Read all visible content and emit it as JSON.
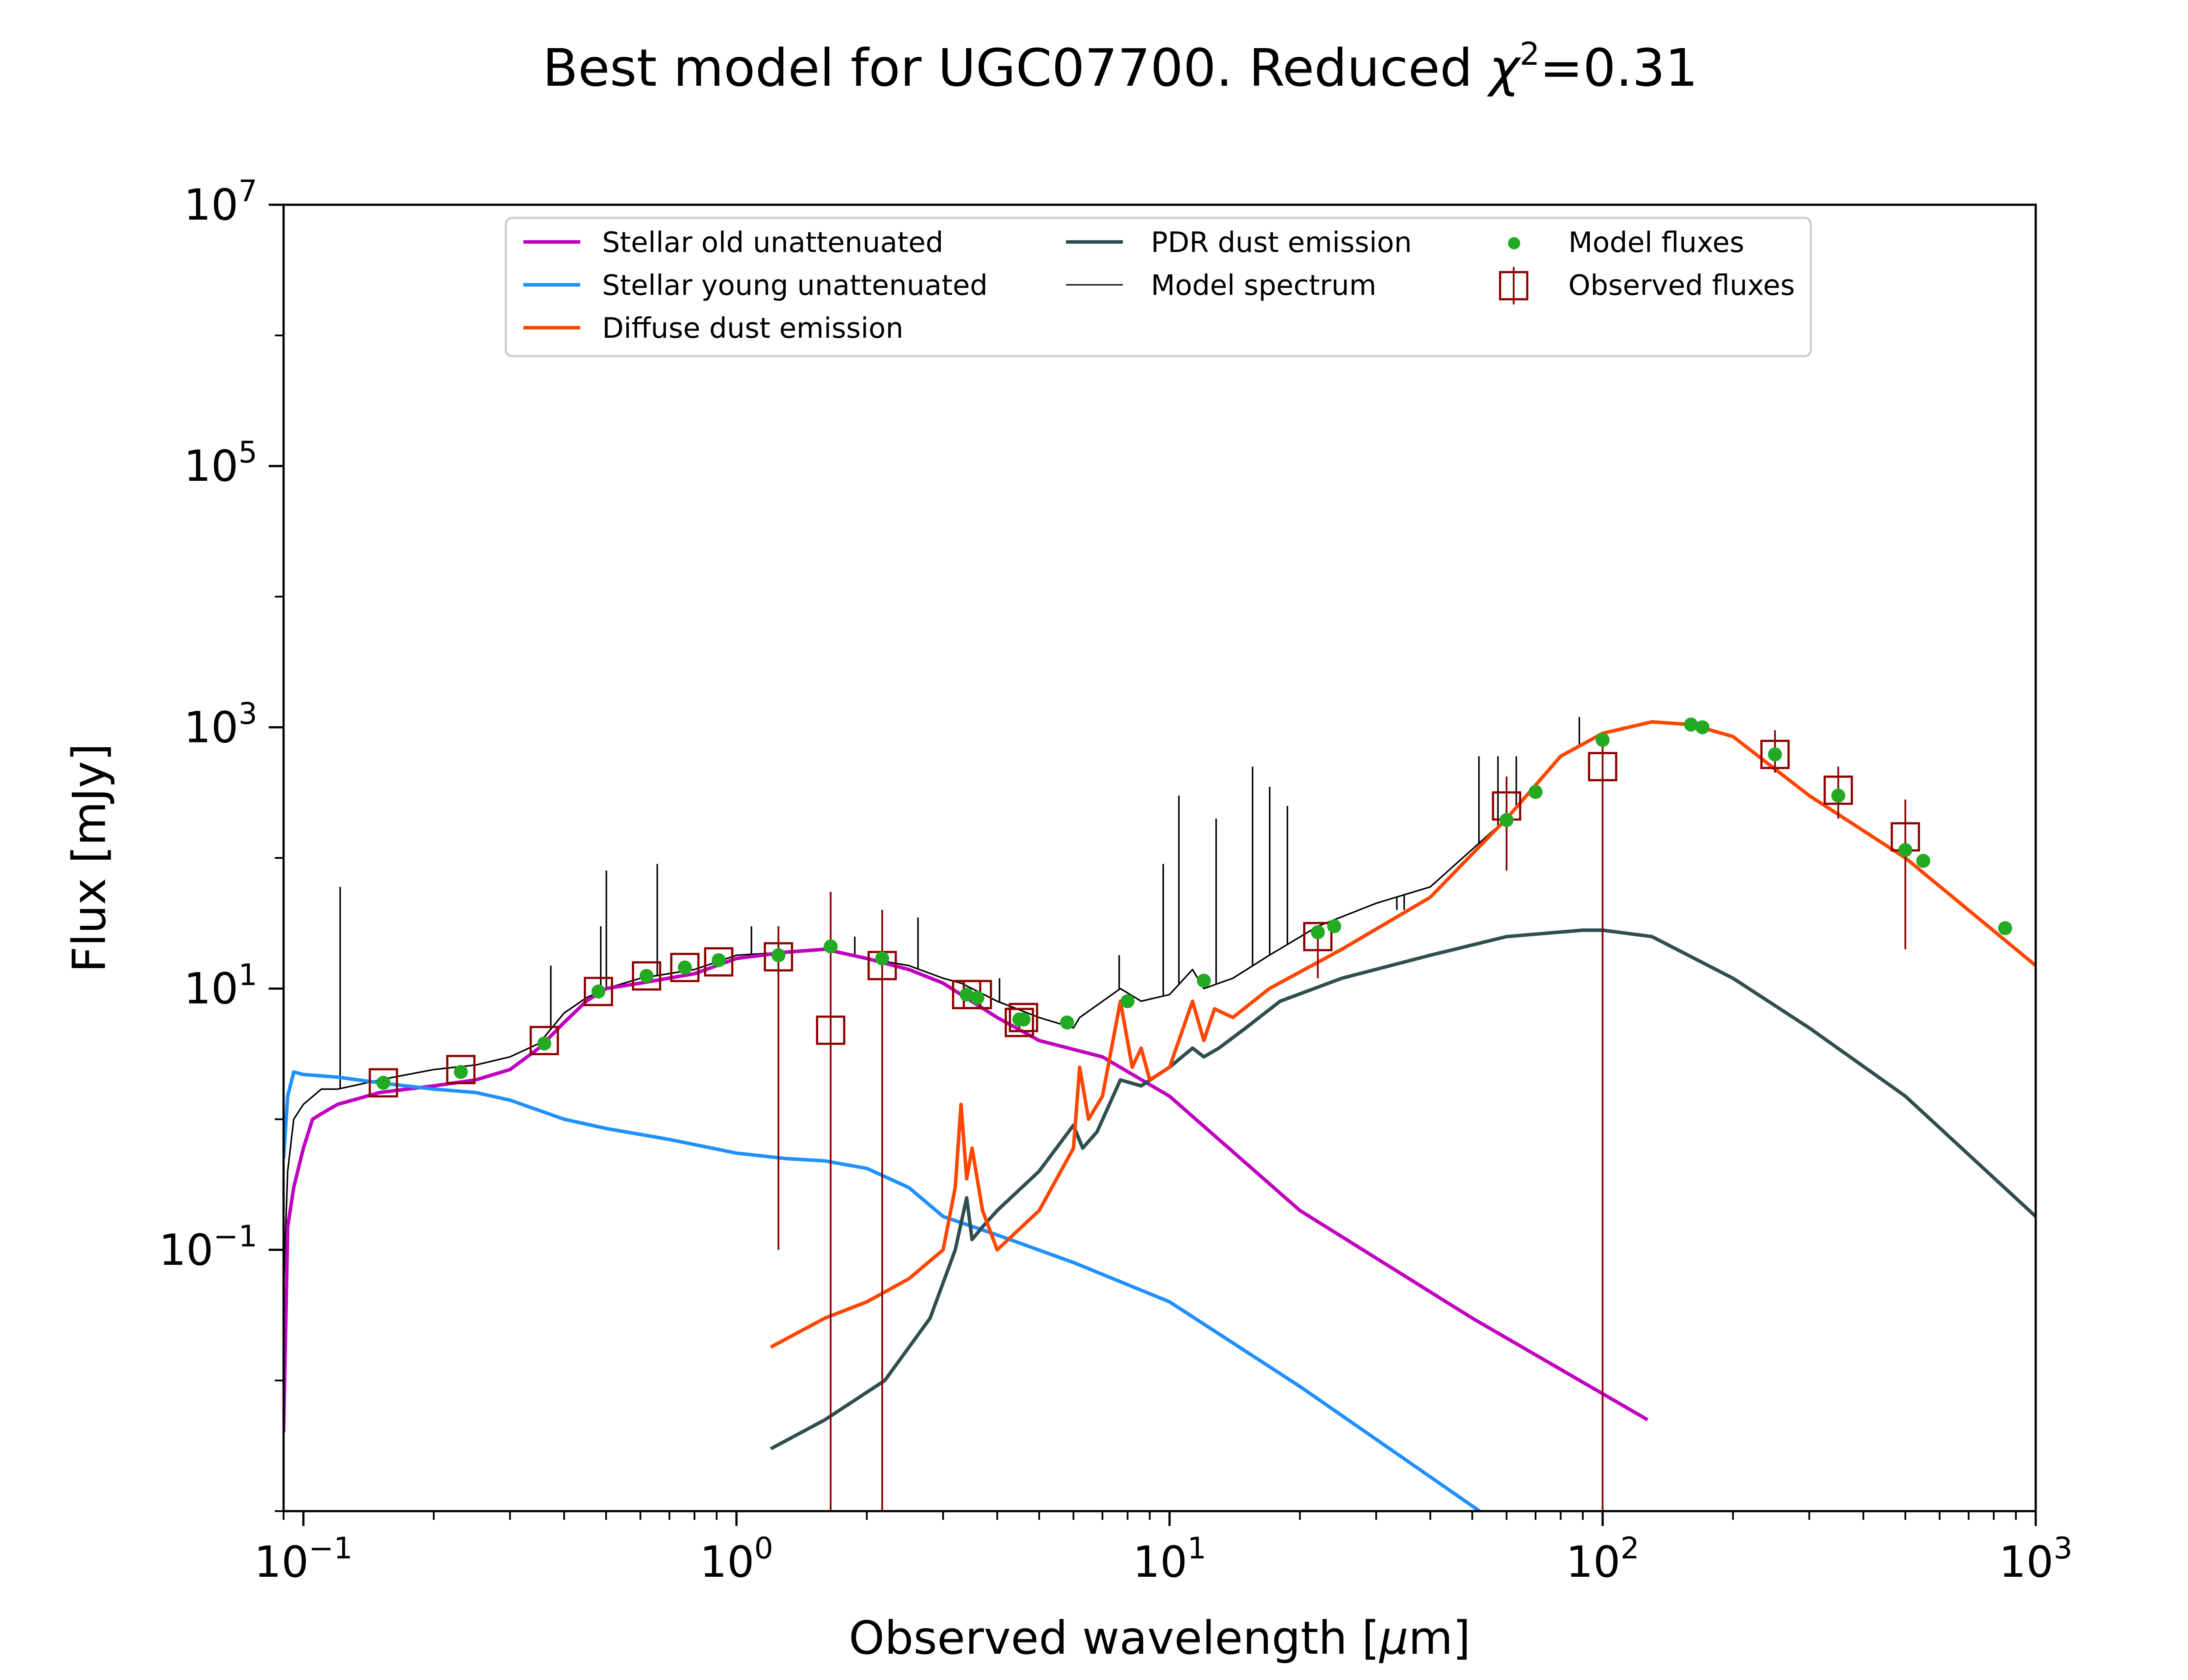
{
  "chart_data": {
    "type": "line",
    "title": "Best model for UGC07700. Reduced χ²=0.31",
    "title_parts": {
      "prefix": "Best model for UGC07700. Reduced ",
      "chi": "χ",
      "sup": "2",
      "suffix": "=0.31"
    },
    "xlabel": "Observed wavelength [μm]",
    "xlabel_parts": {
      "prefix": "Observed wavelength [",
      "mu": "μ",
      "suffix": "m]"
    },
    "ylabel": "Flux [mJy]",
    "x_scale": "log",
    "y_scale": "log",
    "xlim": [
      0.09,
      1000
    ],
    "ylim": [
      0.001,
      10000000
    ],
    "xticks": [
      {
        "value": 0.1,
        "base": "10",
        "exp": "−1"
      },
      {
        "value": 1,
        "base": "10",
        "exp": "0"
      },
      {
        "value": 10,
        "base": "10",
        "exp": "1"
      },
      {
        "value": 100,
        "base": "10",
        "exp": "2"
      },
      {
        "value": 1000,
        "base": "10",
        "exp": "3"
      }
    ],
    "yticks": [
      {
        "value": 0.1,
        "base": "10",
        "exp": "−1"
      },
      {
        "value": 10,
        "base": "10",
        "exp": "1"
      },
      {
        "value": 1000,
        "base": "10",
        "exp": "3"
      },
      {
        "value": 100000,
        "base": "10",
        "exp": "5"
      },
      {
        "value": 10000000,
        "base": "10",
        "exp": "7"
      }
    ],
    "grid": false,
    "legend_position": "top-center",
    "series": [
      {
        "name": "Stellar old unattenuated",
        "kind": "line",
        "color": "#bf00bf",
        "x": [
          0.09,
          0.092,
          0.095,
          0.1,
          0.105,
          0.11,
          0.12,
          0.13,
          0.15,
          0.2,
          0.25,
          0.3,
          0.35,
          0.4,
          0.45,
          0.5,
          0.6,
          0.8,
          1.0,
          1.3,
          1.6,
          2.0,
          2.5,
          3.0,
          4.0,
          5.0,
          7.0,
          10,
          20,
          50,
          127
        ],
        "y": [
          0.004,
          0.15,
          0.3,
          0.6,
          1.0,
          1.1,
          1.3,
          1.4,
          1.6,
          1.8,
          2.0,
          2.4,
          3.5,
          5.5,
          8.0,
          10,
          11,
          13,
          17,
          19,
          20,
          17,
          14,
          11,
          6,
          4,
          3,
          1.5,
          0.2,
          0.03,
          0.005
        ]
      },
      {
        "name": "Stellar young unattenuated",
        "kind": "line",
        "color": "#1e90ff",
        "x": [
          0.09,
          0.092,
          0.095,
          0.1,
          0.12,
          0.15,
          0.2,
          0.25,
          0.3,
          0.4,
          0.5,
          0.7,
          1.0,
          1.3,
          1.6,
          2.0,
          2.5,
          3.0,
          4.0,
          6.0,
          10,
          20,
          52
        ],
        "y": [
          0.5,
          1.5,
          2.3,
          2.2,
          2.1,
          1.9,
          1.7,
          1.6,
          1.4,
          1.0,
          0.85,
          0.7,
          0.55,
          0.5,
          0.48,
          0.42,
          0.3,
          0.18,
          0.13,
          0.08,
          0.04,
          0.009,
          0.001
        ]
      },
      {
        "name": "Diffuse dust emission",
        "kind": "line",
        "color": "#ff4500",
        "x": [
          1.2,
          1.6,
          2.0,
          2.5,
          3.0,
          3.2,
          3.3,
          3.4,
          3.5,
          3.7,
          4.0,
          5.0,
          6.0,
          6.2,
          6.5,
          7.0,
          7.7,
          8.2,
          8.6,
          9.0,
          10,
          11.3,
          12,
          12.7,
          14,
          17,
          25,
          40,
          60,
          80,
          100,
          130,
          160,
          200,
          300,
          500,
          1000
        ],
        "y": [
          0.018,
          0.03,
          0.04,
          0.06,
          0.1,
          0.3,
          1.3,
          0.35,
          0.6,
          0.2,
          0.1,
          0.2,
          0.6,
          2.5,
          1.0,
          1.5,
          8.0,
          2.5,
          3.5,
          2.0,
          2.5,
          8.0,
          4.0,
          7.0,
          6.0,
          10,
          20,
          50,
          200,
          600,
          900,
          1100,
          1050,
          850,
          300,
          100,
          15
        ]
      },
      {
        "name": "PDR dust emission",
        "kind": "line",
        "color": "#2f4f4f",
        "x": [
          1.2,
          1.6,
          2.2,
          2.8,
          3.2,
          3.4,
          3.5,
          3.7,
          4.0,
          5.0,
          6.0,
          6.3,
          6.8,
          7.7,
          8.6,
          10,
          11.3,
          12,
          13,
          15,
          18,
          25,
          40,
          60,
          90,
          100,
          130,
          200,
          300,
          500,
          1000
        ],
        "y": [
          0.003,
          0.005,
          0.01,
          0.03,
          0.1,
          0.25,
          0.12,
          0.15,
          0.2,
          0.4,
          0.9,
          0.6,
          0.8,
          2.0,
          1.8,
          2.5,
          3.5,
          3.0,
          3.5,
          5.0,
          8.0,
          12,
          18,
          25,
          28,
          28,
          25,
          12,
          5,
          1.5,
          0.18
        ]
      },
      {
        "name": "Model spectrum",
        "kind": "line",
        "color": "#000000",
        "x": [
          0.09,
          0.092,
          0.095,
          0.1,
          0.11,
          0.12,
          0.13,
          0.15,
          0.2,
          0.25,
          0.3,
          0.35,
          0.4,
          0.45,
          0.5,
          0.6,
          0.8,
          1.0,
          1.3,
          1.6,
          2.0,
          2.5,
          3.0,
          3.3,
          3.5,
          4.0,
          5.0,
          6.0,
          6.2,
          7.7,
          8.6,
          10,
          11.3,
          12,
          14,
          17,
          22,
          30,
          40,
          60,
          80,
          100,
          130,
          160,
          200,
          300,
          500,
          1000
        ],
        "y": [
          0.05,
          0.4,
          1.0,
          1.3,
          1.7,
          1.7,
          1.8,
          2.0,
          2.4,
          2.6,
          3.0,
          3.8,
          6.5,
          8.5,
          10,
          12,
          14,
          18,
          19,
          20,
          17,
          15,
          12,
          11,
          10,
          8,
          6,
          5,
          6,
          10,
          8,
          9,
          14,
          10,
          12,
          18,
          30,
          45,
          60,
          200,
          600,
          900,
          1100,
          1050,
          850,
          300,
          100,
          15
        ]
      },
      {
        "name": "Model fluxes",
        "kind": "scatter",
        "color": "#22aa22",
        "x": [
          0.153,
          0.231,
          0.36,
          0.48,
          0.62,
          0.76,
          0.91,
          1.25,
          1.65,
          2.17,
          3.4,
          3.6,
          4.5,
          4.6,
          5.8,
          8.0,
          12,
          22,
          24,
          60,
          70,
          100,
          160,
          170,
          250,
          350,
          500,
          550,
          850
        ],
        "y": [
          1.9,
          2.3,
          3.8,
          9.5,
          12.5,
          14.5,
          16.5,
          18,
          21,
          17,
          9,
          8.5,
          5.8,
          5.8,
          5.5,
          8.0,
          11.5,
          27,
          30,
          195,
          320,
          800,
          1050,
          1000,
          620,
          300,
          115,
          95,
          29
        ]
      },
      {
        "name": "Observed fluxes",
        "kind": "errorbar",
        "color": "#8b0000",
        "x": [
          0.153,
          0.231,
          0.36,
          0.48,
          0.62,
          0.76,
          0.91,
          1.25,
          1.65,
          2.17,
          3.4,
          3.6,
          4.5,
          4.6,
          22,
          60,
          100,
          250,
          350,
          500
        ],
        "y": [
          1.9,
          2.4,
          4.0,
          9.5,
          12.5,
          14.5,
          16.0,
          17.5,
          4.8,
          15.0,
          9.0,
          9.0,
          5.5,
          6.0,
          25,
          250,
          500,
          620,
          330,
          145
        ],
        "yerr_lo": [
          1.7,
          2.2,
          3.7,
          9.0,
          12,
          14,
          15.5,
          0.1,
          0.001,
          0.001,
          8.5,
          8.5,
          5.0,
          5.5,
          12,
          80,
          0.001,
          450,
          200,
          20
        ],
        "yerr_hi": [
          2.1,
          2.6,
          4.3,
          10,
          13,
          15,
          16.5,
          30,
          55,
          40,
          9.5,
          9.5,
          6.0,
          6.5,
          30,
          420,
          800,
          950,
          500,
          280
        ]
      }
    ],
    "emission_lines": {
      "x": [
        0.1216,
        0.3727,
        0.4861,
        0.5007,
        0.6563,
        1.083,
        1.876,
        2.625,
        4.05,
        7.65,
        9.67,
        10.51,
        12.81,
        15.55,
        17.03,
        18.71,
        33.48,
        34.81,
        51.81,
        57.32,
        63.18,
        88.36,
        157.7
      ],
      "y_top": [
        60,
        15,
        30,
        80,
        90,
        30,
        25,
        35,
        12,
        18,
        90,
        300,
        200,
        500,
        350,
        250,
        40,
        40,
        600,
        600,
        600,
        1200,
        1100
      ]
    },
    "legend": {
      "columns": [
        [
          "Stellar old unattenuated",
          "Stellar young unattenuated",
          "Diffuse dust emission"
        ],
        [
          "PDR dust emission",
          "Model spectrum"
        ],
        [
          "Model fluxes",
          "Observed fluxes"
        ]
      ]
    }
  }
}
